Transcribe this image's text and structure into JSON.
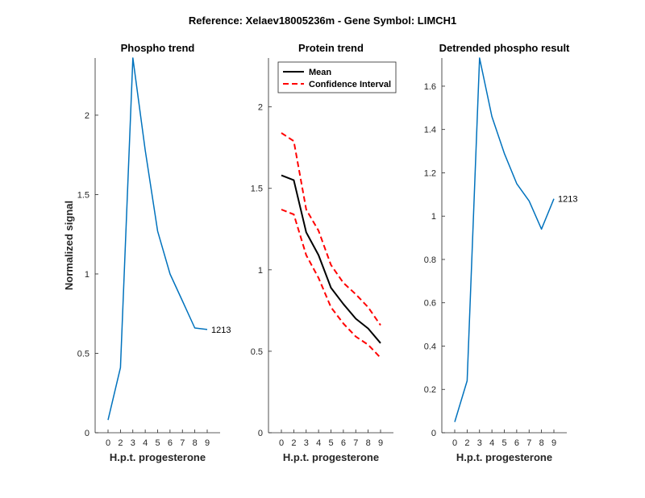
{
  "figure": {
    "suptitle": "Reference:  Xelaev18005236m - Gene Symbol:  LIMCH1"
  },
  "chart_data": [
    {
      "type": "line",
      "title": "Phospho trend",
      "xlabel": "H.p.t. progesterone",
      "ylabel": "Normalized signal",
      "x_tick_labels": [
        "0",
        "2",
        "3",
        "4",
        "5",
        "6",
        "7",
        "8",
        "9"
      ],
      "y_ticks": [
        0,
        0.5,
        1,
        1.5,
        2
      ],
      "y_tick_labels": [
        "0",
        "0.5",
        "1",
        "1.5",
        "2"
      ],
      "ylim": [
        0,
        2.36
      ],
      "series": [
        {
          "color": "#0072BD",
          "style": "solid",
          "values": [
            0.08,
            0.41,
            2.36,
            1.78,
            1.27,
            1.0,
            0.83,
            0.66,
            0.65
          ]
        }
      ],
      "end_label": "1213"
    },
    {
      "type": "line",
      "title": "Protein trend",
      "xlabel": "H.p.t. progesterone",
      "x_tick_labels": [
        "0",
        "2",
        "3",
        "4",
        "5",
        "6",
        "7",
        "8",
        "9"
      ],
      "y_ticks": [
        0,
        0.5,
        1,
        1.5,
        2
      ],
      "y_tick_labels": [
        "0",
        "0.5",
        "1",
        "1.5",
        "2"
      ],
      "ylim": [
        0,
        2.3
      ],
      "legend_position": "top-left",
      "series": [
        {
          "name": "Mean",
          "color": "#000000",
          "style": "solid",
          "values": [
            1.58,
            1.55,
            1.23,
            1.09,
            0.89,
            0.79,
            0.7,
            0.64,
            0.55
          ]
        },
        {
          "name": "Confidence Interval",
          "color": "#FF0000",
          "style": "dashed",
          "values": [
            1.84,
            1.79,
            1.37,
            1.24,
            1.03,
            0.92,
            0.85,
            0.77,
            0.66
          ]
        },
        {
          "color": "#FF0000",
          "style": "dashed",
          "values": [
            1.37,
            1.34,
            1.09,
            0.95,
            0.77,
            0.67,
            0.59,
            0.54,
            0.46
          ]
        }
      ]
    },
    {
      "type": "line",
      "title": "Detrended phospho result",
      "xlabel": "H.p.t. progesterone",
      "x_tick_labels": [
        "0",
        "2",
        "3",
        "4",
        "5",
        "6",
        "7",
        "8",
        "9"
      ],
      "y_ticks": [
        0,
        0.2,
        0.4,
        0.6,
        0.8,
        1,
        1.2,
        1.4,
        1.6
      ],
      "y_tick_labels": [
        "0",
        "0.2",
        "0.4",
        "0.6",
        "0.8",
        "1",
        "1.2",
        "1.4",
        "1.6"
      ],
      "ylim": [
        0,
        1.73
      ],
      "series": [
        {
          "color": "#0072BD",
          "style": "solid",
          "values": [
            0.05,
            0.24,
            1.73,
            1.46,
            1.29,
            1.15,
            1.07,
            0.94,
            1.08
          ]
        }
      ],
      "end_label": "1213"
    }
  ]
}
